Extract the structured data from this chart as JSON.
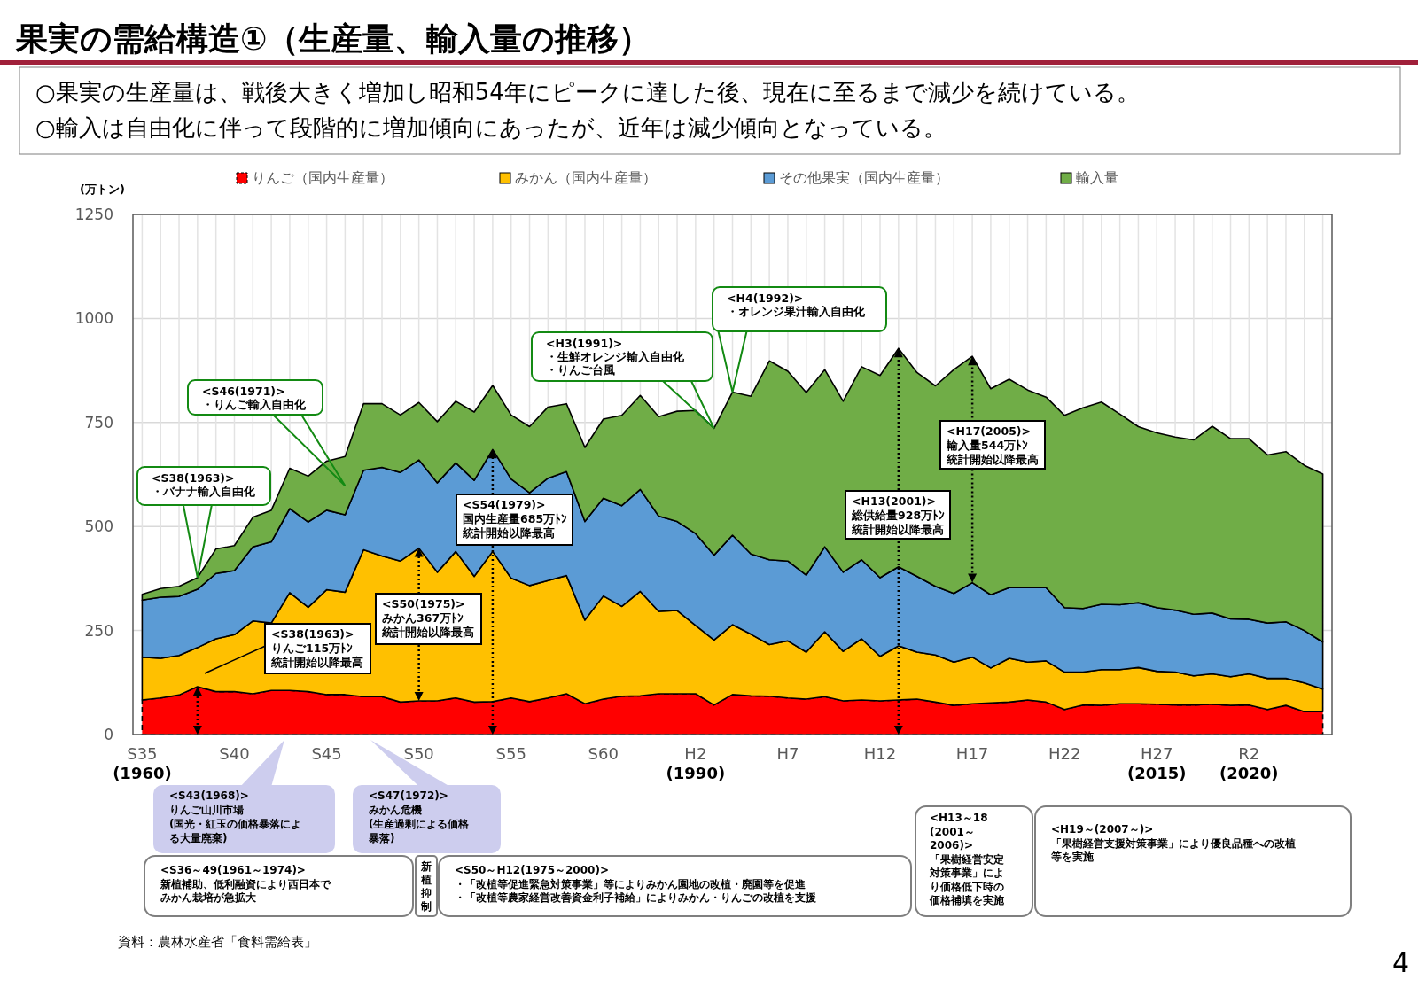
{
  "chart_data": {
    "type": "area",
    "stacked": true,
    "title": "果実の需給構造①（生産量、輸入量の推移）",
    "subtitle": "○果実の生産量は、戦後大きく増加し昭和54年にピークに達した後、現在に至るまで減少を続けている。\n○輸入は自由化に伴って段階的に増加傾向にあったが、近年は減少傾向となっている。",
    "ylabel": "(万トン)",
    "categories": [
      "S35\n(1960)",
      null,
      null,
      null,
      null,
      "S40",
      null,
      null,
      null,
      null,
      "S45",
      null,
      null,
      null,
      null,
      "S50",
      null,
      null,
      null,
      null,
      "S55",
      null,
      null,
      null,
      null,
      "S60",
      null,
      null,
      null,
      null,
      "H2\n(1990)",
      null,
      null,
      null,
      null,
      "H7",
      null,
      null,
      null,
      null,
      "H12",
      null,
      null,
      null,
      null,
      "H17",
      null,
      null,
      null,
      null,
      "H22",
      null,
      null,
      null,
      null,
      "H27\n(2015)",
      null,
      null,
      null,
      null,
      "R2\n(2020)",
      null,
      null,
      null,
      null
    ],
    "series": [
      {
        "name": "りんご（国内生産量）",
        "color": "#ff0000",
        "line_style": "dashed",
        "values": [
          83,
          88,
          95,
          115,
          103,
          103,
          98,
          106,
          106,
          103,
          96,
          96,
          91,
          91,
          78,
          81,
          81,
          88,
          78,
          79,
          88,
          79,
          88,
          98,
          74,
          85,
          92,
          93,
          98,
          98,
          98,
          71,
          96,
          93,
          92,
          88,
          85,
          91,
          81,
          83,
          81,
          83,
          85,
          78,
          70,
          74,
          76,
          78,
          83,
          78,
          60,
          71,
          70,
          74,
          74,
          73,
          71,
          71,
          73,
          70,
          71,
          60,
          70,
          55,
          55
        ]
      },
      {
        "name": "みかん（国内生産量）",
        "color": "#ffc000",
        "values": [
          103,
          95,
          95,
          94,
          127,
          137,
          175,
          162,
          235,
          203,
          252,
          246,
          353,
          338,
          339,
          367,
          309,
          352,
          302,
          361,
          288,
          279,
          282,
          284,
          201,
          248,
          216,
          251,
          198,
          200,
          164,
          156,
          168,
          148,
          124,
          137,
          113,
          156,
          119,
          147,
          107,
          130,
          113,
          113,
          104,
          112,
          84,
          105,
          91,
          99,
          90,
          79,
          86,
          82,
          87,
          79,
          79,
          70,
          73,
          69,
          75,
          75,
          65,
          69,
          54
        ]
      },
      {
        "name": "その他果実（国内生産量）",
        "color": "#5b9bd5",
        "values": [
          137,
          147,
          142,
          140,
          157,
          154,
          178,
          195,
          202,
          205,
          191,
          186,
          191,
          213,
          213,
          212,
          215,
          213,
          231,
          245,
          238,
          223,
          246,
          250,
          237,
          235,
          242,
          245,
          229,
          214,
          221,
          204,
          215,
          193,
          204,
          192,
          185,
          204,
          190,
          190,
          189,
          190,
          182,
          165,
          165,
          179,
          176,
          170,
          179,
          176,
          155,
          153,
          157,
          156,
          156,
          153,
          149,
          148,
          146,
          139,
          131,
          133,
          136,
          126,
          113
        ]
      },
      {
        "name": "輸入量",
        "color": "#70ad47",
        "values": [
          14,
          21,
          24,
          28,
          59,
          60,
          71,
          76,
          97,
          110,
          118,
          140,
          160,
          153,
          138,
          138,
          147,
          148,
          164,
          154,
          154,
          159,
          171,
          163,
          178,
          190,
          217,
          226,
          239,
          265,
          296,
          305,
          344,
          379,
          478,
          456,
          439,
          426,
          411,
          464,
          486,
          525,
          490,
          482,
          538,
          544,
          495,
          501,
          475,
          458,
          462,
          482,
          486,
          458,
          423,
          420,
          416,
          419,
          449,
          433,
          434,
          404,
          409,
          397,
          404
        ]
      }
    ],
    "ylim": [
      0,
      1250
    ],
    "yticks": [
      0,
      250,
      500,
      750,
      1000,
      1250
    ],
    "grid": true,
    "legend": "top",
    "annotations": [
      "<S38(1963)>\n・バナナ輸入自由化",
      "<S46(1971)>\n・りんご輸入自由化",
      "<H3(1991)>\n・生鮮オレンジ輸入自由化・りんご台風",
      "<H4(1992)>\n・オレンジ果汁輸入自由化",
      "<S38(1963)>\nりんご115万ﾄﾝ統計開始以降最高",
      "<S50(1975)>\nみかん367万ﾄﾝ統計開始以降最高",
      "<S54(1979)>\n国内生産量685万ﾄﾝ統計開始以降最高",
      "<H13(2001)>\n総供給量928万ﾄﾝ統計開始以降最高",
      "<H17(2005)>\n輸入量544万ﾄﾝ統計開始以降最高",
      "<S43(1968)>\nりんご山川市場\n(国光・紅玉の価格暴落による大量廃棄)",
      "<S47(1972)>\nみかん危機\n(生産過剰による価格暴落)",
      "<S36～49(1961～1974)>\n新植補助、低利融資により西日本でみかん栽培が急拡大",
      "新植抑制",
      "<S50～H12(1975～2000)>\n・「改植等促進緊急対策事業」等によりみかん園地の改植・廃園等を促進・「改植等農家経営改善資金利子補給」によりみかん・りんごの改植を支援",
      "<H13～18\n(2001～\n2006)>\n「果樹経営安定対策事業」により価格低下時の価格補填を実施",
      "<H19～(2007～)>\n「果樹経営支援対策事業」により優良品種への改植等を実施",
      "資料：農林水産省「食料需給表」",
      "4"
    ]
  }
}
